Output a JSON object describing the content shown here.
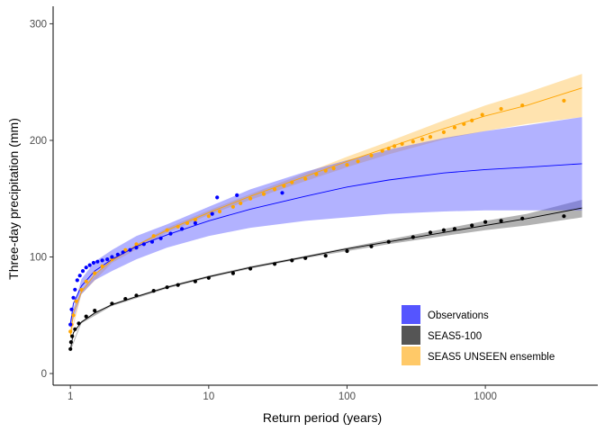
{
  "chart_data": {
    "type": "scatter",
    "title": "",
    "xlabel": "Return period (years)",
    "ylabel": "Three-day precipitation (mm)",
    "x_scale": "log10",
    "xlim": [
      0.75,
      6500
    ],
    "ylim": [
      -10,
      315
    ],
    "x_ticks": [
      {
        "value": 1,
        "label": "1"
      },
      {
        "value": 10,
        "label": "10"
      },
      {
        "value": 100,
        "label": "100"
      },
      {
        "value": 1000,
        "label": "1000"
      }
    ],
    "y_ticks": [
      {
        "value": 0,
        "label": "0"
      },
      {
        "value": 100,
        "label": "100"
      },
      {
        "value": 200,
        "label": "200"
      },
      {
        "value": 300,
        "label": "300"
      }
    ],
    "grid": false,
    "legend": {
      "position": "bottom-right"
    },
    "series": [
      {
        "name": "SEAS5 UNSEEN ensemble",
        "color": "#FFA500",
        "band_color": "#FFC04D",
        "points": [
          [
            1.0,
            36
          ],
          [
            1.02,
            42
          ],
          [
            1.05,
            50
          ],
          [
            1.1,
            62
          ],
          [
            1.2,
            72
          ],
          [
            1.3,
            79
          ],
          [
            1.5,
            86
          ],
          [
            1.7,
            92
          ],
          [
            2.0,
            98
          ],
          [
            2.5,
            106
          ],
          [
            3.0,
            111
          ],
          [
            4.0,
            118
          ],
          [
            5.0,
            123
          ],
          [
            6.0,
            126
          ],
          [
            7.0,
            129
          ],
          [
            8.0,
            132
          ],
          [
            10.0,
            135
          ],
          [
            12.0,
            139
          ],
          [
            15.0,
            143
          ],
          [
            17.0,
            146
          ],
          [
            20.0,
            150
          ],
          [
            25.0,
            154
          ],
          [
            30.0,
            158
          ],
          [
            35.0,
            161
          ],
          [
            40.0,
            164
          ],
          [
            50.0,
            167
          ],
          [
            60.0,
            171
          ],
          [
            70.0,
            174
          ],
          [
            80.0,
            176
          ],
          [
            100.0,
            179
          ],
          [
            120.0,
            182
          ],
          [
            150.0,
            187
          ],
          [
            180.0,
            191
          ],
          [
            200.0,
            193
          ],
          [
            220.0,
            195
          ],
          [
            250.0,
            197
          ],
          [
            300.0,
            199
          ],
          [
            350.0,
            201
          ],
          [
            400.0,
            203
          ],
          [
            500.0,
            207
          ],
          [
            600.0,
            211
          ],
          [
            700.0,
            214
          ],
          [
            800.0,
            217
          ],
          [
            950.0,
            222
          ],
          [
            1300.0,
            227
          ],
          [
            1850.0,
            230
          ],
          [
            3700.0,
            234
          ]
        ],
        "fit": [
          [
            1.0,
            32
          ],
          [
            1.05,
            52
          ],
          [
            1.2,
            70
          ],
          [
            1.5,
            85
          ],
          [
            2.0,
            97
          ],
          [
            3.0,
            110
          ],
          [
            5.0,
            123
          ],
          [
            10.0,
            138
          ],
          [
            20.0,
            152
          ],
          [
            50.0,
            169
          ],
          [
            100.0,
            182
          ],
          [
            200.0,
            194
          ],
          [
            500.0,
            210
          ],
          [
            1000.0,
            221
          ],
          [
            2000.0,
            230
          ],
          [
            5000.0,
            245
          ]
        ],
        "band": [
          [
            1.0,
            30,
            34
          ],
          [
            1.2,
            68,
            72
          ],
          [
            2.0,
            95,
            99
          ],
          [
            5.0,
            121,
            125
          ],
          [
            10.0,
            136,
            140
          ],
          [
            20.0,
            149,
            154
          ],
          [
            50.0,
            165,
            172
          ],
          [
            100.0,
            177,
            186
          ],
          [
            200.0,
            188,
            199
          ],
          [
            500.0,
            201,
            217
          ],
          [
            1000.0,
            208,
            230
          ],
          [
            2000.0,
            214,
            241
          ],
          [
            5000.0,
            220,
            257
          ]
        ]
      },
      {
        "name": "SEAS5-100",
        "color": "#000000",
        "band_color": "#555555",
        "points": [
          [
            1.0,
            21
          ],
          [
            1.01,
            27
          ],
          [
            1.03,
            32
          ],
          [
            1.08,
            38
          ],
          [
            1.15,
            43
          ],
          [
            1.3,
            49
          ],
          [
            1.5,
            54
          ],
          [
            2.0,
            60
          ],
          [
            2.5,
            64
          ],
          [
            3.0,
            67
          ],
          [
            4.0,
            71
          ],
          [
            5.0,
            74
          ],
          [
            6.0,
            76
          ],
          [
            8.0,
            79
          ],
          [
            10.0,
            82
          ],
          [
            15.0,
            86
          ],
          [
            20.0,
            90
          ],
          [
            30.0,
            94
          ],
          [
            40.0,
            97
          ],
          [
            50.0,
            99
          ],
          [
            70.0,
            101
          ],
          [
            100.0,
            105
          ],
          [
            150.0,
            109
          ],
          [
            200.0,
            113
          ],
          [
            300.0,
            117
          ],
          [
            400.0,
            121
          ],
          [
            500.0,
            123
          ],
          [
            600.0,
            124
          ],
          [
            800.0,
            127
          ],
          [
            1000.0,
            130
          ],
          [
            1300.0,
            131
          ],
          [
            1850.0,
            133
          ],
          [
            3700.0,
            135
          ]
        ],
        "fit": [
          [
            1.0,
            20
          ],
          [
            1.05,
            35
          ],
          [
            1.2,
            44
          ],
          [
            1.5,
            52
          ],
          [
            2.0,
            59
          ],
          [
            3.0,
            66
          ],
          [
            5.0,
            74
          ],
          [
            10.0,
            83
          ],
          [
            20.0,
            91
          ],
          [
            50.0,
            100
          ],
          [
            100.0,
            107
          ],
          [
            200.0,
            113
          ],
          [
            500.0,
            121
          ],
          [
            1000.0,
            127
          ],
          [
            2000.0,
            133
          ],
          [
            5000.0,
            142
          ]
        ],
        "band": [
          [
            1.0,
            19,
            21
          ],
          [
            1.2,
            43,
            45
          ],
          [
            2.0,
            58,
            60
          ],
          [
            5.0,
            73,
            75
          ],
          [
            10.0,
            82,
            84
          ],
          [
            20.0,
            90,
            92
          ],
          [
            50.0,
            99,
            101
          ],
          [
            100.0,
            105,
            108
          ],
          [
            200.0,
            111,
            115
          ],
          [
            500.0,
            118,
            124
          ],
          [
            1000.0,
            123,
            131
          ],
          [
            2000.0,
            127,
            137
          ],
          [
            5000.0,
            134,
            149
          ]
        ]
      },
      {
        "name": "Observations",
        "color": "#0000FF",
        "band_color": "#5555FF",
        "points": [
          [
            1.0,
            42
          ],
          [
            1.02,
            55
          ],
          [
            1.05,
            65
          ],
          [
            1.08,
            72
          ],
          [
            1.12,
            80
          ],
          [
            1.17,
            84
          ],
          [
            1.23,
            88
          ],
          [
            1.3,
            91
          ],
          [
            1.38,
            93
          ],
          [
            1.47,
            95
          ],
          [
            1.57,
            96
          ],
          [
            1.7,
            97
          ],
          [
            1.85,
            98
          ],
          [
            2.0,
            100
          ],
          [
            2.2,
            102
          ],
          [
            2.4,
            104
          ],
          [
            2.7,
            106
          ],
          [
            3.0,
            108
          ],
          [
            3.4,
            111
          ],
          [
            3.9,
            113
          ],
          [
            4.5,
            116
          ],
          [
            5.3,
            120
          ],
          [
            6.4,
            124
          ],
          [
            8.0,
            129
          ],
          [
            10.6,
            137
          ],
          [
            11.5,
            151
          ],
          [
            16.0,
            153
          ],
          [
            34.0,
            155
          ]
        ],
        "fit": [
          [
            1.0,
            42
          ],
          [
            1.05,
            60
          ],
          [
            1.2,
            75
          ],
          [
            1.5,
            88
          ],
          [
            2.0,
            98
          ],
          [
            3.0,
            109
          ],
          [
            5.0,
            119
          ],
          [
            10.0,
            131
          ],
          [
            20.0,
            141
          ],
          [
            50.0,
            152
          ],
          [
            100.0,
            160
          ],
          [
            200.0,
            166
          ],
          [
            500.0,
            172
          ],
          [
            1000.0,
            175
          ],
          [
            2000.0,
            177
          ],
          [
            5000.0,
            180
          ]
        ],
        "band": [
          [
            1.0,
            38,
            46
          ],
          [
            1.2,
            68,
            81
          ],
          [
            1.5,
            80,
            96
          ],
          [
            2.0,
            88,
            106
          ],
          [
            3.0,
            98,
            118
          ],
          [
            5.0,
            108,
            128
          ],
          [
            10.0,
            118,
            143
          ],
          [
            20.0,
            125,
            158
          ],
          [
            50.0,
            131,
            173
          ],
          [
            100.0,
            134,
            183
          ],
          [
            200.0,
            137,
            192
          ],
          [
            500.0,
            139,
            202
          ],
          [
            1000.0,
            140,
            208
          ],
          [
            2000.0,
            140,
            213
          ],
          [
            5000.0,
            140,
            220
          ]
        ]
      }
    ]
  }
}
